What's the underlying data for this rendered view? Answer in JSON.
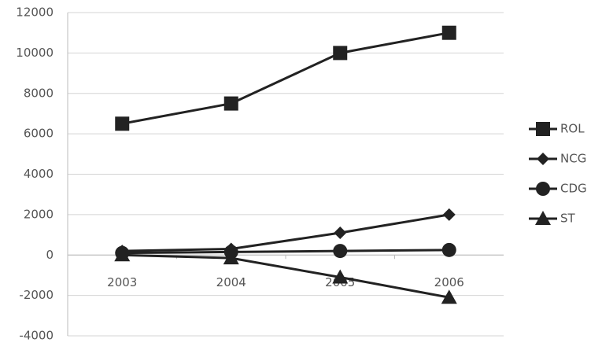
{
  "chart_data": {
    "type": "line",
    "categories": [
      "2003",
      "2004",
      "2005",
      "2006"
    ],
    "series": [
      {
        "name": "ROL",
        "color": "#222222",
        "marker": "square",
        "values": [
          6500,
          7500,
          10000,
          11000
        ]
      },
      {
        "name": "NCG",
        "color": "#222222",
        "marker": "diamond",
        "values": [
          200,
          300,
          1100,
          2000
        ]
      },
      {
        "name": "CDG",
        "color": "#222222",
        "marker": "circle",
        "values": [
          100,
          150,
          200,
          250
        ]
      },
      {
        "name": "ST",
        "color": "#222222",
        "marker": "triangle",
        "values": [
          0,
          -150,
          -1100,
          -2100
        ]
      }
    ],
    "ylim": [
      -4000,
      12000
    ],
    "yticks": [
      -4000,
      -2000,
      0,
      2000,
      4000,
      6000,
      8000,
      10000,
      12000
    ],
    "grid": true,
    "legend": "right"
  }
}
